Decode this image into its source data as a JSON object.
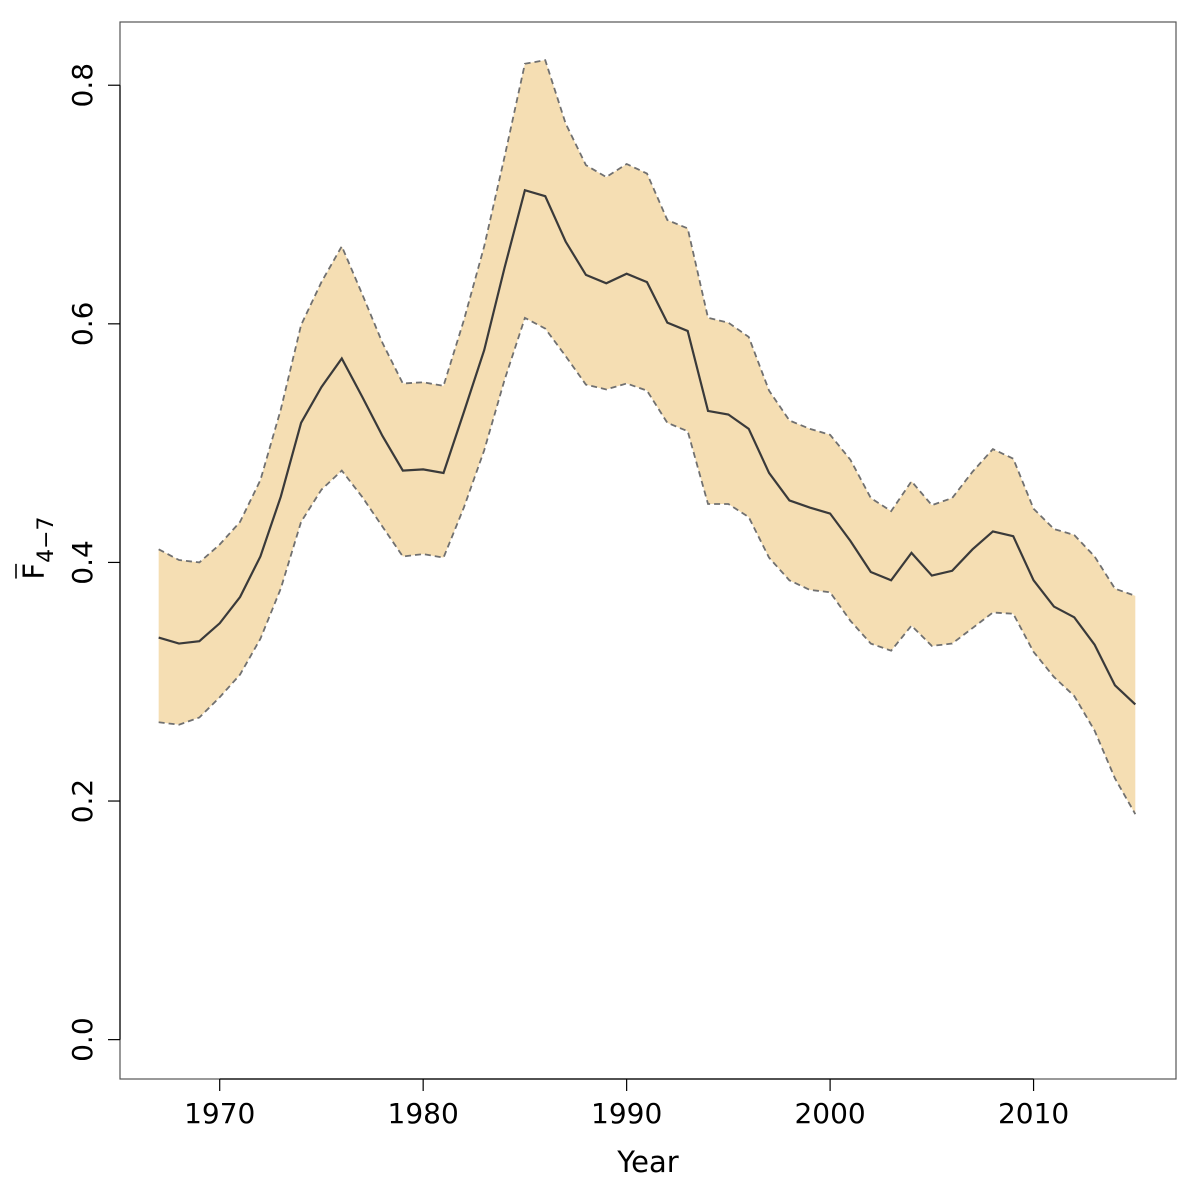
{
  "chart_data": {
    "type": "line",
    "title": "",
    "xlabel": "Year",
    "ylabel": {
      "base": "F",
      "subscript": "4−7",
      "overline": true
    },
    "xlim": [
      1965.1,
      2017.0
    ],
    "ylim": [
      -0.033,
      0.853
    ],
    "x_ticks": [
      1970,
      1980,
      1990,
      2000,
      2010
    ],
    "y_ticks": [
      0.0,
      0.2,
      0.4,
      0.6,
      0.8
    ],
    "y_tick_labels": [
      "0.0",
      "0.2",
      "0.4",
      "0.6",
      "0.8"
    ],
    "grid": false,
    "legend": "none",
    "colors": {
      "band_fill": "#f5deb3",
      "bound_line": "#707070",
      "estimate_line": "#3a3a3a",
      "frame": "#555555"
    },
    "x": [
      1967,
      1968,
      1969,
      1970,
      1971,
      1972,
      1973,
      1974,
      1975,
      1976,
      1977,
      1978,
      1979,
      1980,
      1981,
      1982,
      1983,
      1984,
      1985,
      1986,
      1987,
      1988,
      1989,
      1990,
      1991,
      1992,
      1993,
      1994,
      1995,
      1996,
      1997,
      1998,
      1999,
      2000,
      2001,
      2002,
      2003,
      2004,
      2005,
      2006,
      2007,
      2008,
      2009,
      2010,
      2011,
      2012,
      2013,
      2014,
      2015
    ],
    "series": [
      {
        "role": "estimate",
        "values": [
          0.337,
          0.332,
          0.334,
          0.349,
          0.371,
          0.405,
          0.455,
          0.517,
          0.547,
          0.571,
          0.539,
          0.506,
          0.477,
          0.478,
          0.475,
          0.526,
          0.578,
          0.647,
          0.712,
          0.707,
          0.669,
          0.641,
          0.634,
          0.642,
          0.635,
          0.601,
          0.594,
          0.527,
          0.524,
          0.512,
          0.475,
          0.452,
          0.446,
          0.441,
          0.418,
          0.392,
          0.385,
          0.408,
          0.389,
          0.393,
          0.411,
          0.426,
          0.422,
          0.385,
          0.363,
          0.354,
          0.331,
          0.297,
          0.281
        ]
      },
      {
        "role": "upper",
        "values": [
          0.411,
          0.402,
          0.4,
          0.415,
          0.434,
          0.469,
          0.528,
          0.599,
          0.635,
          0.665,
          0.625,
          0.584,
          0.55,
          0.551,
          0.548,
          0.603,
          0.665,
          0.74,
          0.818,
          0.821,
          0.768,
          0.733,
          0.723,
          0.734,
          0.726,
          0.687,
          0.68,
          0.605,
          0.601,
          0.589,
          0.544,
          0.519,
          0.512,
          0.507,
          0.486,
          0.454,
          0.443,
          0.468,
          0.448,
          0.454,
          0.476,
          0.495,
          0.487,
          0.445,
          0.428,
          0.423,
          0.405,
          0.378,
          0.372
        ]
      },
      {
        "role": "lower",
        "values": [
          0.266,
          0.264,
          0.27,
          0.287,
          0.306,
          0.336,
          0.378,
          0.434,
          0.461,
          0.477,
          0.455,
          0.43,
          0.405,
          0.407,
          0.404,
          0.446,
          0.494,
          0.553,
          0.605,
          0.596,
          0.573,
          0.549,
          0.545,
          0.55,
          0.544,
          0.517,
          0.51,
          0.449,
          0.449,
          0.438,
          0.404,
          0.385,
          0.377,
          0.375,
          0.351,
          0.332,
          0.326,
          0.347,
          0.33,
          0.332,
          0.345,
          0.358,
          0.357,
          0.325,
          0.304,
          0.288,
          0.259,
          0.219,
          0.189
        ]
      }
    ]
  }
}
